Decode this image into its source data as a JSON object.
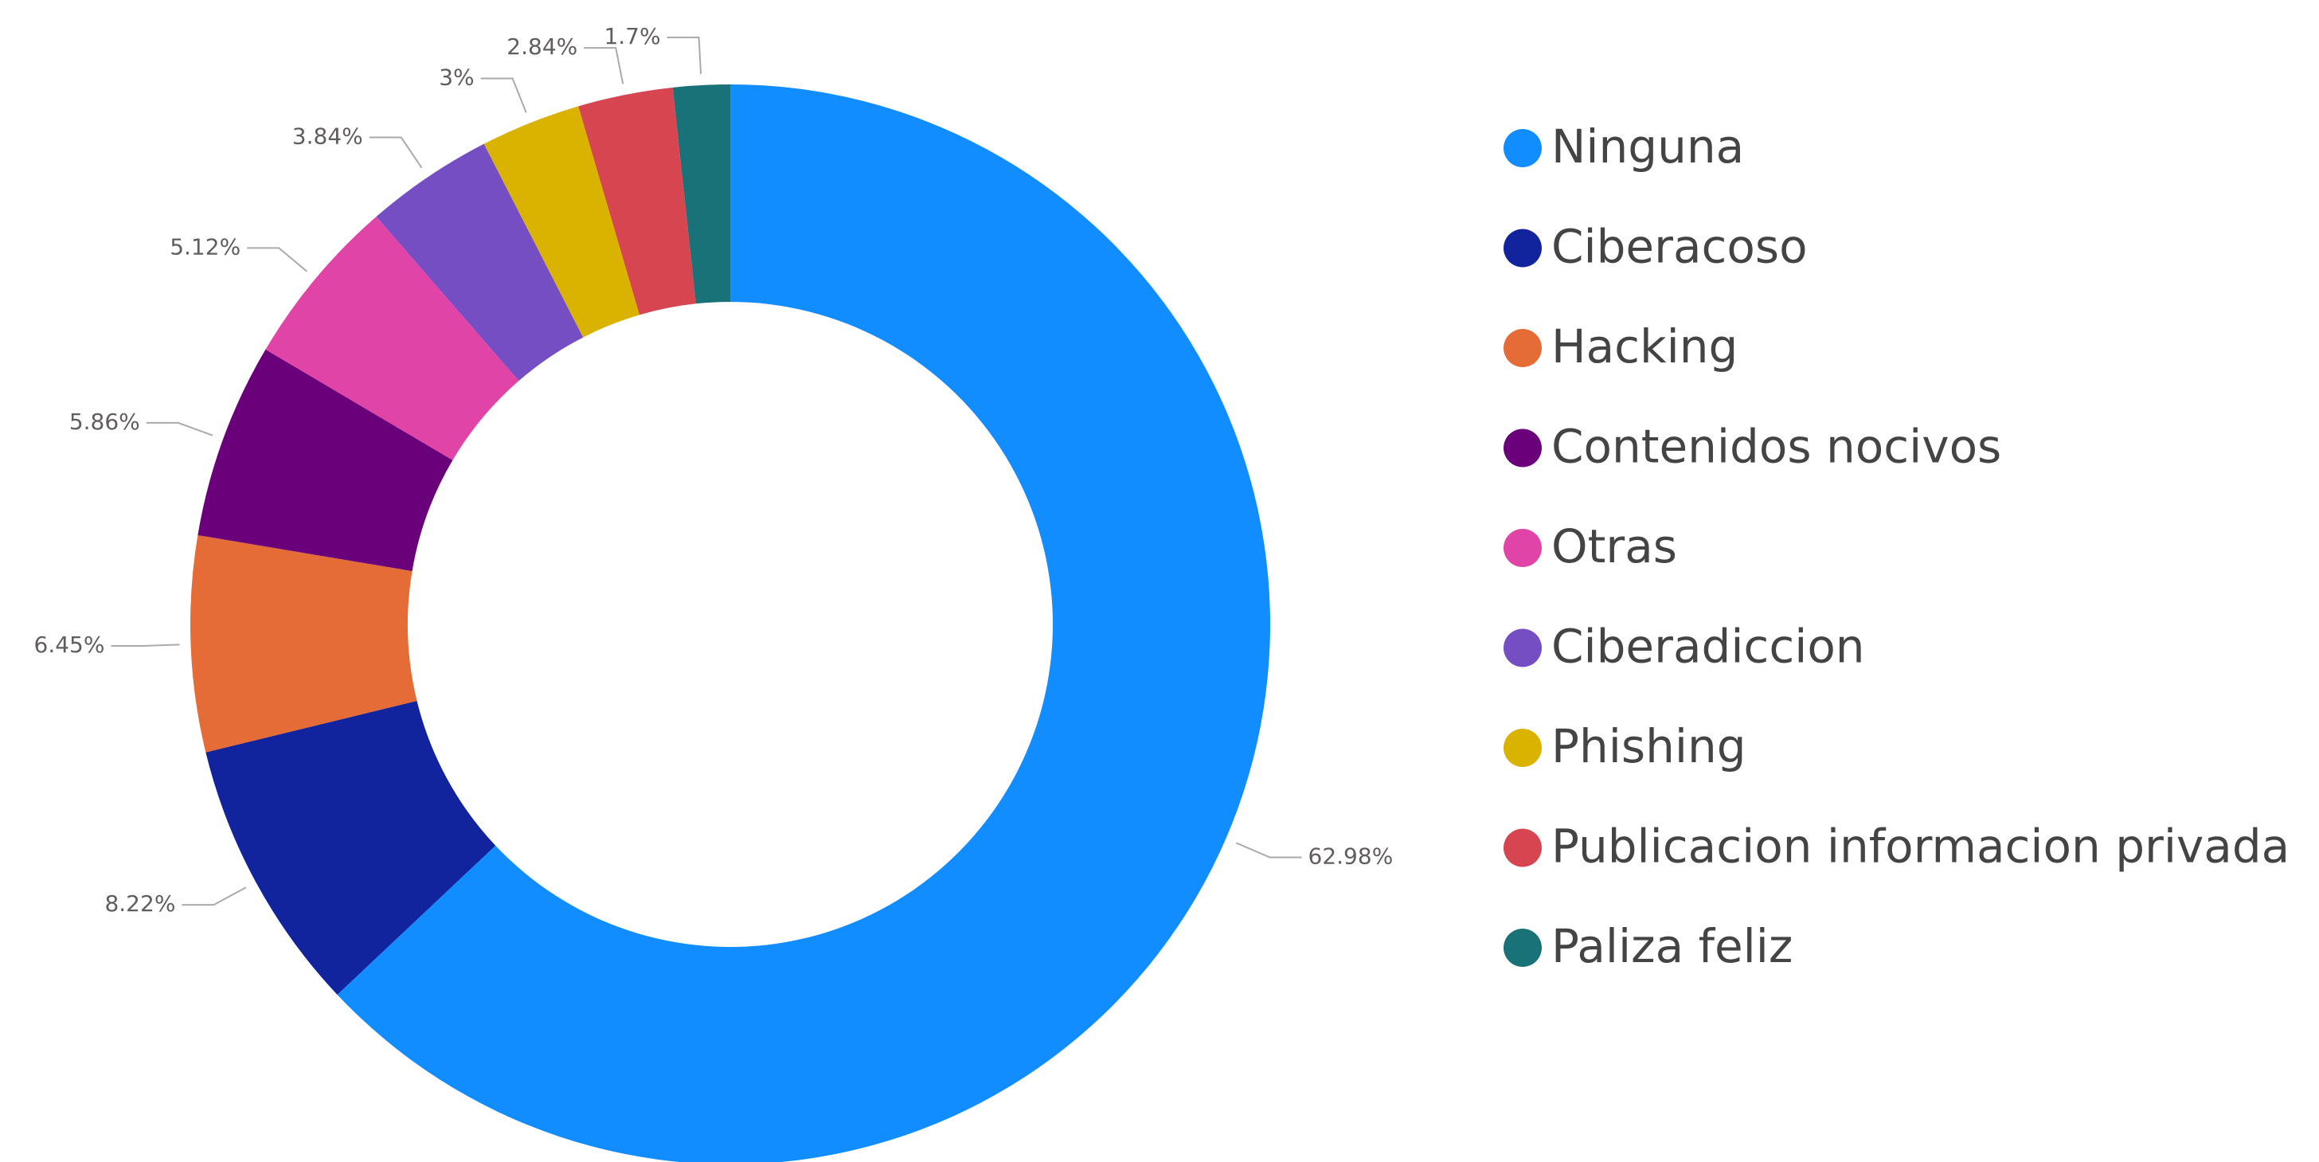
{
  "chart_data": {
    "type": "donut",
    "categories": [
      "Ninguna",
      "Ciberacoso",
      "Hacking",
      "Contenidos nocivos",
      "Otras",
      "Ciberadiccion",
      "Phishing",
      "Publicacion informacion privada",
      "Paliza feliz"
    ],
    "values": [
      62.98,
      8.22,
      6.45,
      5.86,
      5.12,
      3.84,
      3,
      2.84,
      1.7
    ],
    "value_labels": [
      "62.98%",
      "8.22%",
      "6.45%",
      "5.86%",
      "5.12%",
      "3.84%",
      "3%",
      "2.84%",
      "1.7%"
    ],
    "colors": [
      "#118DFF",
      "#12239E",
      "#E66C37",
      "#6B007B",
      "#E044A7",
      "#744EC2",
      "#D9B300",
      "#D64550",
      "#197278"
    ],
    "legend": "right"
  }
}
